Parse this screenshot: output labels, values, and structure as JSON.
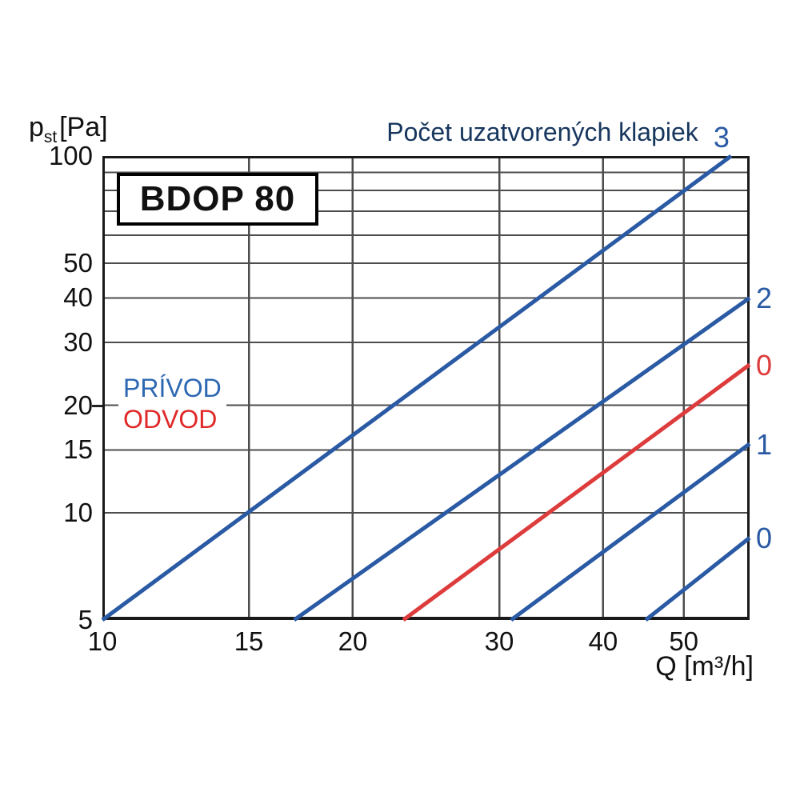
{
  "page": {
    "background": "#ffffff"
  },
  "palette": {
    "privod_blue": "#2a5aa4",
    "odvod_red": "#dd3c3c",
    "title_navy": "#17365d",
    "legend_blue": "#2d68b2",
    "legend_red": "#e02828",
    "grid_gray": "#4d4d4d",
    "axis_black": "#1a1a1a",
    "text_black": "#111111"
  },
  "chart_data": {
    "type": "line",
    "scale": "log-log",
    "title": "Počet uzatvorených klapiek",
    "model_label": "BDOP 80",
    "x_axis": {
      "unit_label": "Q [m³/h]",
      "min": 10,
      "max": 60,
      "tick_labels": [
        "10",
        "15",
        "20",
        "30",
        "40",
        "50"
      ],
      "tick_values": [
        10,
        15,
        20,
        30,
        40,
        50
      ],
      "gridline_values": [
        15,
        20,
        30,
        40,
        50
      ]
    },
    "y_axis": {
      "symbol": "p",
      "symbol_sub": "st",
      "unit": "[Pa]",
      "min": 5,
      "max": 100,
      "tick_labels": [
        "100",
        "50",
        "40",
        "30",
        "20",
        "15",
        "10",
        "5"
      ],
      "tick_values": [
        100,
        50,
        40,
        30,
        20,
        15,
        10,
        5
      ],
      "gridline_values": [
        90,
        80,
        70,
        60,
        50,
        40,
        30,
        20,
        15,
        10
      ]
    },
    "legend": [
      {
        "label": "PRÍVOD",
        "color": "#2d68b2"
      },
      {
        "label": "ODVOD",
        "color": "#e02828"
      }
    ],
    "series": [
      {
        "name": "privod-3",
        "group": "PRÍVOD",
        "label": "3",
        "color": "#2a5aa4",
        "points": [
          [
            10,
            5
          ],
          [
            57,
            100
          ]
        ]
      },
      {
        "name": "privod-2",
        "group": "PRÍVOD",
        "label": "2",
        "color": "#2a5aa4",
        "points": [
          [
            17,
            5
          ],
          [
            60,
            40
          ]
        ]
      },
      {
        "name": "odvod-0",
        "group": "ODVOD",
        "label": "0",
        "color": "#dd3c3c",
        "points": [
          [
            23,
            5
          ],
          [
            60,
            26
          ]
        ]
      },
      {
        "name": "privod-1",
        "group": "PRÍVOD",
        "label": "1",
        "color": "#2a5aa4",
        "points": [
          [
            31,
            5
          ],
          [
            60,
            15.6
          ]
        ]
      },
      {
        "name": "privod-0",
        "group": "PRÍVOD",
        "label": "0",
        "color": "#2a5aa4",
        "points": [
          [
            45,
            5
          ],
          [
            60,
            8.5
          ]
        ]
      }
    ],
    "grid": "on",
    "legend_position": "inside-left"
  }
}
